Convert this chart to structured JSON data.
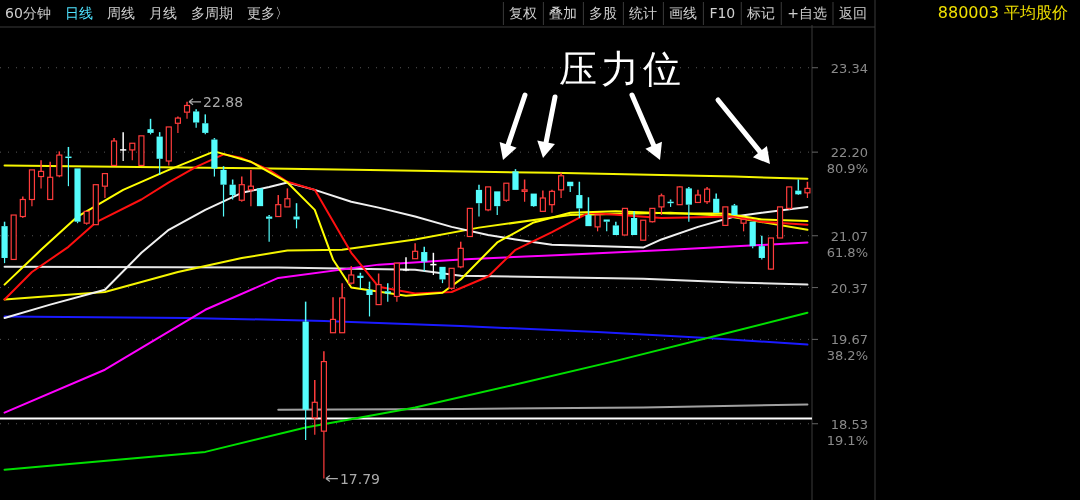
{
  "chart_data": {
    "type": "candlestick",
    "title": "880003 平均股价",
    "categories": [
      null,
      null,
      null,
      null,
      null,
      null,
      null,
      null,
      null,
      null,
      null,
      null,
      null,
      null,
      null,
      null,
      null,
      null,
      null,
      null,
      null,
      null,
      null,
      null,
      null,
      null,
      null,
      null,
      null,
      null,
      null,
      null,
      null,
      null,
      null,
      null,
      null,
      null,
      null,
      null,
      null,
      null,
      null,
      null,
      null,
      null,
      null,
      null,
      null,
      null,
      null,
      null,
      null,
      null,
      null,
      null,
      null,
      null,
      null,
      null,
      null,
      null,
      null,
      null,
      null,
      null,
      null,
      null,
      null,
      null,
      null,
      null,
      null,
      null,
      null,
      null,
      null,
      null,
      null,
      null,
      null,
      null,
      null,
      null,
      null,
      null,
      null,
      null,
      null
    ],
    "ohlc": [
      [
        21.2,
        21.26,
        20.7,
        20.77
      ],
      [
        20.75,
        21.35,
        20.75,
        21.35
      ],
      [
        21.33,
        21.6,
        21.31,
        21.56
      ],
      [
        21.56,
        21.96,
        21.47,
        21.96
      ],
      [
        21.87,
        22.09,
        21.71,
        21.94
      ],
      [
        21.56,
        22.07,
        21.56,
        21.86
      ],
      [
        21.88,
        22.21,
        21.86,
        22.16
      ],
      [
        22.14,
        22.27,
        21.74,
        22.12
      ],
      [
        21.98,
        21.98,
        21.24,
        21.26
      ],
      [
        21.24,
        21.4,
        21.22,
        21.4
      ],
      [
        21.22,
        21.76,
        21.22,
        21.76
      ],
      [
        21.74,
        21.91,
        21.58,
        21.91
      ],
      [
        22.02,
        22.39,
        22.02,
        22.35
      ],
      [
        22.23,
        22.47,
        22.08,
        22.23
      ],
      [
        22.23,
        22.32,
        22.09,
        22.32
      ],
      [
        22.02,
        22.42,
        22.02,
        22.42
      ],
      [
        22.51,
        22.65,
        22.44,
        22.46
      ],
      [
        22.41,
        22.47,
        21.89,
        22.11
      ],
      [
        22.08,
        22.54,
        22.02,
        22.54
      ],
      [
        22.59,
        22.68,
        22.46,
        22.66
      ],
      [
        22.74,
        22.88,
        22.65,
        22.83
      ],
      [
        22.75,
        22.78,
        22.53,
        22.6
      ],
      [
        22.59,
        22.71,
        22.44,
        22.46
      ],
      [
        22.37,
        22.39,
        21.87,
        21.98
      ],
      [
        21.96,
        22.01,
        21.33,
        21.76
      ],
      [
        21.76,
        21.83,
        21.56,
        21.62
      ],
      [
        21.55,
        21.87,
        21.53,
        21.76
      ],
      [
        21.69,
        21.96,
        21.47,
        21.74
      ],
      [
        21.71,
        21.71,
        21.47,
        21.47
      ],
      [
        21.33,
        21.35,
        20.99,
        21.3
      ],
      [
        21.33,
        21.62,
        21.33,
        21.49
      ],
      [
        21.46,
        21.71,
        21.46,
        21.57
      ],
      [
        21.33,
        21.51,
        21.17,
        21.29
      ],
      [
        19.91,
        20.18,
        18.31,
        18.72
      ],
      [
        18.61,
        19.12,
        18.38,
        18.82
      ],
      [
        18.43,
        19.51,
        17.79,
        19.37
      ],
      [
        19.76,
        20.24,
        19.76,
        19.94
      ],
      [
        19.76,
        20.43,
        19.76,
        20.23
      ],
      [
        20.43,
        20.66,
        20.41,
        20.54
      ],
      [
        20.53,
        20.57,
        20.35,
        20.5
      ],
      [
        20.34,
        20.45,
        19.98,
        20.27
      ],
      [
        20.14,
        20.56,
        20.14,
        20.41
      ],
      [
        20.32,
        20.43,
        20.18,
        20.29
      ],
      [
        20.25,
        20.7,
        20.18,
        20.7
      ],
      [
        20.61,
        20.78,
        20.59,
        20.61
      ],
      [
        20.76,
        20.97,
        20.76,
        20.86
      ],
      [
        20.85,
        20.92,
        20.59,
        20.72
      ],
      [
        20.68,
        20.84,
        20.54,
        20.68
      ],
      [
        20.65,
        20.65,
        20.43,
        20.48
      ],
      [
        20.36,
        20.63,
        20.34,
        20.63
      ],
      [
        20.65,
        20.99,
        20.63,
        20.9
      ],
      [
        21.06,
        21.44,
        21.06,
        21.44
      ],
      [
        21.69,
        21.76,
        21.33,
        21.51
      ],
      [
        21.42,
        21.73,
        21.4,
        21.73
      ],
      [
        21.67,
        21.67,
        21.35,
        21.47
      ],
      [
        21.55,
        21.78,
        21.53,
        21.78
      ],
      [
        21.94,
        21.97,
        21.69,
        21.69
      ],
      [
        21.67,
        21.83,
        21.53,
        21.69
      ],
      [
        21.64,
        21.64,
        21.46,
        21.47
      ],
      [
        21.4,
        21.68,
        21.4,
        21.58
      ],
      [
        21.49,
        21.69,
        21.38,
        21.67
      ],
      [
        21.69,
        21.92,
        21.58,
        21.88
      ],
      [
        21.8,
        21.8,
        21.66,
        21.74
      ],
      [
        21.62,
        21.8,
        21.31,
        21.44
      ],
      [
        21.35,
        21.59,
        21.2,
        21.2
      ],
      [
        21.19,
        21.35,
        21.13,
        21.35
      ],
      [
        21.29,
        21.29,
        21.13,
        21.26
      ],
      [
        21.21,
        21.26,
        21.08,
        21.08
      ],
      [
        21.08,
        21.44,
        21.08,
        21.44
      ],
      [
        21.31,
        21.4,
        21.08,
        21.08
      ],
      [
        21.01,
        21.28,
        21.01,
        21.28
      ],
      [
        21.26,
        21.44,
        21.25,
        21.44
      ],
      [
        21.46,
        21.64,
        21.35,
        21.61
      ],
      [
        21.53,
        21.56,
        21.46,
        21.51
      ],
      [
        21.49,
        21.74,
        21.49,
        21.73
      ],
      [
        21.71,
        21.73,
        21.26,
        21.49
      ],
      [
        21.52,
        21.69,
        21.52,
        21.62
      ],
      [
        21.53,
        21.73,
        21.5,
        21.7
      ],
      [
        21.57,
        21.64,
        21.38,
        21.38
      ],
      [
        21.21,
        21.46,
        21.21,
        21.46
      ],
      [
        21.48,
        21.5,
        21.35,
        21.35
      ],
      [
        21.24,
        21.29,
        21.13,
        21.29
      ],
      [
        21.26,
        21.26,
        20.9,
        20.93
      ],
      [
        20.93,
        21.07,
        20.75,
        20.77
      ],
      [
        20.62,
        21.04,
        20.61,
        21.04
      ],
      [
        21.04,
        21.46,
        21.04,
        21.46
      ],
      [
        21.44,
        21.73,
        21.42,
        21.73
      ],
      [
        21.68,
        21.83,
        21.62,
        21.63
      ],
      [
        21.65,
        21.8,
        21.58,
        21.71
      ]
    ],
    "series": [
      {
        "type": "line",
        "color": "#f5f500",
        "values": [
          22.02,
          null,
          null,
          null,
          null,
          null,
          null,
          null,
          null,
          null,
          null,
          null,
          null,
          null,
          null,
          null,
          null,
          null,
          null,
          null,
          null,
          null,
          21.99,
          null,
          null,
          null,
          null,
          null,
          null,
          null,
          null,
          null,
          null,
          null,
          null,
          null,
          null,
          null,
          null,
          null,
          21.96,
          null,
          null,
          null,
          null,
          null,
          null,
          null,
          null,
          null,
          null,
          null,
          null,
          null,
          null,
          null,
          null,
          null,
          null,
          null,
          21.92,
          null,
          null,
          null,
          null,
          null,
          null,
          null,
          null,
          null,
          null,
          null,
          null,
          null,
          null,
          null,
          null,
          null,
          null,
          null,
          21.87,
          null,
          null,
          null,
          null,
          null,
          null,
          null,
          21.84
        ]
      },
      {
        "type": "line",
        "color": "#e8e8e8",
        "values": [
          20.65,
          null,
          null,
          null,
          null,
          null,
          null,
          null,
          null,
          null,
          null,
          null,
          null,
          null,
          null,
          null,
          null,
          null,
          null,
          null,
          null,
          null,
          null,
          null,
          null,
          null,
          null,
          null,
          null,
          null,
          20.64,
          null,
          null,
          null,
          null,
          null,
          null,
          null,
          null,
          null,
          null,
          null,
          null,
          null,
          null,
          20.61,
          null,
          null,
          null,
          null,
          20.53,
          null,
          null,
          null,
          null,
          null,
          null,
          null,
          null,
          null,
          null,
          null,
          null,
          null,
          null,
          null,
          null,
          null,
          null,
          null,
          20.49,
          null,
          null,
          null,
          null,
          null,
          null,
          null,
          null,
          null,
          20.44,
          null,
          null,
          null,
          null,
          null,
          null,
          null,
          20.41
        ]
      },
      {
        "type": "line",
        "color": "#a0a0a0",
        "values": [
          null,
          null,
          null,
          null,
          null,
          null,
          null,
          null,
          null,
          null,
          null,
          null,
          null,
          null,
          null,
          null,
          null,
          null,
          null,
          null,
          null,
          null,
          null,
          null,
          null,
          null,
          null,
          null,
          null,
          null,
          18.72,
          null,
          null,
          null,
          null,
          null,
          null,
          null,
          null,
          null,
          null,
          null,
          null,
          null,
          null,
          null,
          null,
          null,
          null,
          null,
          18.73,
          null,
          null,
          null,
          null,
          null,
          null,
          null,
          null,
          null,
          null,
          null,
          null,
          null,
          null,
          null,
          null,
          null,
          null,
          null,
          18.75,
          null,
          null,
          null,
          null,
          null,
          null,
          null,
          null,
          null,
          null,
          null,
          null,
          null,
          null,
          null,
          null,
          null,
          18.79
        ]
      },
      {
        "type": "line",
        "color": "#1a1aff",
        "values": [
          19.98,
          null,
          null,
          null,
          null,
          null,
          null,
          null,
          null,
          null,
          null,
          null,
          null,
          null,
          null,
          null,
          null,
          null,
          null,
          null,
          19.96,
          null,
          null,
          null,
          null,
          null,
          null,
          null,
          null,
          null,
          null,
          null,
          null,
          null,
          null,
          19.92,
          null,
          null,
          null,
          null,
          null,
          null,
          null,
          null,
          null,
          null,
          null,
          null,
          null,
          null,
          19.85,
          null,
          null,
          null,
          null,
          null,
          null,
          null,
          null,
          null,
          null,
          null,
          null,
          null,
          null,
          19.77,
          null,
          null,
          null,
          null,
          null,
          null,
          null,
          null,
          null,
          null,
          null,
          19.69,
          null,
          null,
          null,
          null,
          null,
          null,
          null,
          null,
          null,
          null,
          19.6
        ]
      },
      {
        "type": "line",
        "color": "#00e000",
        "values": [
          17.91,
          null,
          null,
          null,
          null,
          null,
          null,
          null,
          null,
          null,
          null,
          null,
          null,
          null,
          null,
          null,
          null,
          null,
          null,
          null,
          null,
          null,
          18.15,
          null,
          null,
          null,
          null,
          null,
          null,
          null,
          null,
          null,
          null,
          18.48,
          null,
          null,
          null,
          null,
          null,
          null,
          null,
          null,
          null,
          null,
          null,
          18.75,
          null,
          null,
          null,
          null,
          null,
          null,
          null,
          null,
          null,
          null,
          19.06,
          null,
          null,
          null,
          null,
          null,
          null,
          null,
          null,
          null,
          null,
          19.38,
          null,
          null,
          null,
          null,
          null,
          null,
          null,
          null,
          null,
          null,
          null,
          19.75,
          null,
          null,
          null,
          null,
          null,
          null,
          null,
          null,
          20.03
        ]
      },
      {
        "type": "line",
        "color": "#ff00ff",
        "values": [
          18.68,
          null,
          null,
          null,
          null,
          null,
          null,
          null,
          null,
          null,
          null,
          19.26,
          null,
          null,
          null,
          null,
          null,
          null,
          null,
          null,
          null,
          null,
          20.07,
          null,
          null,
          null,
          null,
          null,
          null,
          null,
          20.5,
          null,
          null,
          null,
          null,
          null,
          null,
          null,
          null,
          null,
          null,
          20.68,
          null,
          null,
          null,
          null,
          null,
          null,
          null,
          null,
          20.75,
          null,
          null,
          null,
          null,
          null,
          null,
          null,
          null,
          null,
          null,
          20.81,
          null,
          null,
          null,
          null,
          null,
          null,
          null,
          null,
          null,
          null,
          null,
          20.88,
          null,
          null,
          null,
          null,
          null,
          null,
          null,
          null,
          null,
          null,
          null,
          null,
          null,
          null,
          20.98
        ]
      },
      {
        "type": "line",
        "color": "#f5f500",
        "values": [
          20.21,
          null,
          null,
          null,
          null,
          null,
          null,
          null,
          null,
          null,
          null,
          20.31,
          null,
          null,
          null,
          null,
          null,
          null,
          null,
          20.58,
          null,
          null,
          null,
          null,
          null,
          null,
          20.77,
          null,
          null,
          null,
          null,
          20.87,
          null,
          null,
          null,
          null,
          null,
          20.88,
          null,
          null,
          null,
          null,
          null,
          null,
          null,
          21.02,
          null,
          null,
          null,
          null,
          null,
          null,
          21.18,
          null,
          null,
          null,
          null,
          null,
          null,
          null,
          null,
          null,
          21.35,
          null,
          null,
          null,
          null,
          null,
          null,
          null,
          null,
          null,
          null,
          21.38,
          null,
          null,
          null,
          null,
          null,
          21.34,
          null,
          null,
          null,
          null,
          null,
          null,
          null,
          null,
          21.15
        ]
      },
      {
        "type": "line",
        "color": "#f0f0f0",
        "values": [
          19.96,
          null,
          null,
          null,
          null,
          20.14,
          null,
          null,
          null,
          null,
          null,
          20.34,
          null,
          null,
          null,
          20.84,
          null,
          null,
          21.15,
          null,
          null,
          null,
          21.42,
          null,
          null,
          null,
          21.65,
          null,
          null,
          21.73,
          null,
          21.79,
          null,
          null,
          21.69,
          null,
          null,
          null,
          21.53,
          null,
          null,
          21.45,
          null,
          null,
          null,
          21.33,
          null,
          null,
          null,
          21.19,
          null,
          null,
          null,
          21.08,
          null,
          null,
          21.02,
          null,
          null,
          null,
          20.95,
          null,
          null,
          null,
          null,
          null,
          null,
          null,
          null,
          null,
          20.91,
          null,
          21.02,
          null,
          null,
          null,
          21.19,
          null,
          null,
          null,
          21.33,
          null,
          null,
          21.38,
          null,
          null,
          null,
          null,
          21.46
        ]
      },
      {
        "type": "line",
        "color": "#ff1010",
        "values": [
          20.21,
          null,
          null,
          20.58,
          null,
          null,
          null,
          20.92,
          null,
          null,
          21.25,
          null,
          null,
          null,
          null,
          21.56,
          null,
          null,
          21.79,
          null,
          null,
          22.0,
          null,
          null,
          22.17,
          null,
          22.12,
          null,
          null,
          21.96,
          null,
          21.8,
          null,
          null,
          21.69,
          null,
          null,
          null,
          20.84,
          null,
          null,
          20.38,
          null,
          null,
          null,
          20.29,
          null,
          null,
          null,
          20.31,
          null,
          null,
          null,
          20.52,
          null,
          null,
          20.88,
          null,
          null,
          null,
          21.12,
          null,
          null,
          null,
          21.38,
          null,
          null,
          null,
          null,
          null,
          null,
          null,
          21.31,
          null,
          null,
          null,
          null,
          null,
          null,
          null,
          21.33,
          null,
          null,
          21.26,
          null,
          null,
          null,
          null,
          21.22
        ]
      },
      {
        "type": "line",
        "color": "#ffff00",
        "values": [
          20.41,
          null,
          null,
          null,
          20.88,
          null,
          null,
          null,
          21.33,
          null,
          null,
          null,
          null,
          21.69,
          null,
          null,
          null,
          null,
          21.96,
          null,
          null,
          null,
          null,
          22.21,
          null,
          null,
          null,
          22.07,
          null,
          null,
          null,
          21.79,
          null,
          null,
          21.42,
          null,
          20.75,
          null,
          20.37,
          null,
          null,
          null,
          null,
          null,
          20.26,
          null,
          null,
          null,
          20.3,
          null,
          20.48,
          null,
          null,
          null,
          20.98,
          null,
          null,
          null,
          21.25,
          null,
          null,
          null,
          21.38,
          null,
          null,
          null,
          null,
          21.4,
          null,
          null,
          null,
          null,
          null,
          21.37,
          null,
          null,
          null,
          null,
          null,
          21.37,
          null,
          null,
          null,
          21.29,
          null,
          null,
          null,
          null,
          21.27
        ]
      }
    ],
    "ref_lines": [
      {
        "axis": "y",
        "value": 18.6,
        "color": "#ffffff"
      }
    ],
    "ylim": [
      17.5,
      23.85
    ],
    "yticks": [
      23.34,
      {
        "value": 22.2,
        "label": "22.20\n80.9%"
      },
      {
        "value": 21.07,
        "label": "21.07\n61.8%"
      },
      20.37,
      {
        "value": 19.67,
        "label": "19.67\n38.2%"
      },
      {
        "value": 18.53,
        "label": "18.53\n19.1%"
      }
    ],
    "grid": "y",
    "tick_labels": "y",
    "annotations": [
      "压力位",
      "22.88",
      "17.79",
      "60分钟",
      "日线",
      "周线",
      "月线",
      "多周期",
      "更多〉",
      "复权",
      "叠加",
      "多股",
      "统计",
      "画线",
      "F10",
      "标记",
      "+自选",
      "返回"
    ]
  }
}
